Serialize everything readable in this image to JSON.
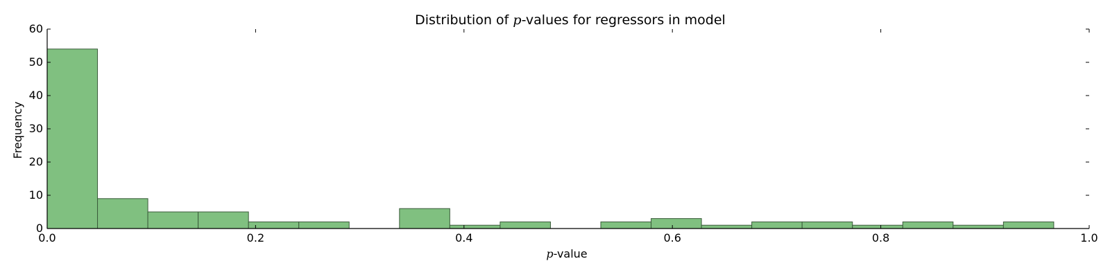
{
  "chart_data": {
    "type": "bar",
    "title_parts": [
      "Distribution of ",
      "p",
      "-values for regressors in model"
    ],
    "xlabel_parts": [
      "p",
      "-value"
    ],
    "ylabel": "Frequency",
    "xlim": [
      0.0,
      1.0
    ],
    "ylim": [
      0,
      60
    ],
    "x_ticks": [
      "0.0",
      "0.2",
      "0.4",
      "0.6",
      "0.8",
      "1.0"
    ],
    "y_ticks": [
      "0",
      "10",
      "20",
      "30",
      "40",
      "50",
      "60"
    ],
    "bin_edges": [
      0.0,
      0.0483,
      0.0966,
      0.1449,
      0.1932,
      0.2415,
      0.2898,
      0.3381,
      0.3864,
      0.4347,
      0.483,
      0.5313,
      0.5796,
      0.6279,
      0.6762,
      0.7245,
      0.7728,
      0.8211,
      0.8694,
      0.9177,
      0.966
    ],
    "values": [
      54,
      9,
      5,
      5,
      2,
      2,
      0,
      6,
      1,
      2,
      0,
      2,
      3,
      1,
      2,
      2,
      1,
      2,
      1,
      2
    ],
    "bar_color": "#80c080",
    "edge_color": "#3a5a3a",
    "grid": false
  }
}
